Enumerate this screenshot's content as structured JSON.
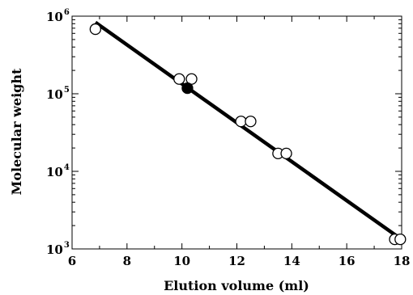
{
  "chart_data": {
    "type": "scatter",
    "title": "",
    "xlabel": "Elution volume (ml)",
    "ylabel": "Molecular weight",
    "xlim": [
      6,
      18
    ],
    "ylim": [
      1000,
      1000000
    ],
    "y_scale": "log",
    "x_ticks": [
      "6",
      "8",
      "10",
      "12",
      "14",
      "16",
      "18"
    ],
    "y_tick_labels": [
      {
        "base": "10",
        "exp": "3",
        "value": 1000
      },
      {
        "base": "10",
        "exp": "4",
        "value": 10000
      },
      {
        "base": "10",
        "exp": "5",
        "value": 100000
      },
      {
        "base": "10",
        "exp": "6",
        "value": 1000000
      }
    ],
    "grid": false,
    "series": [
      {
        "marker": "open-circle",
        "points": [
          {
            "x": 6.85,
            "y": 680000
          },
          {
            "x": 9.9,
            "y": 155000
          },
          {
            "x": 10.35,
            "y": 155000
          },
          {
            "x": 12.15,
            "y": 44000
          },
          {
            "x": 12.5,
            "y": 44000
          },
          {
            "x": 13.5,
            "y": 17000
          },
          {
            "x": 13.8,
            "y": 17000
          },
          {
            "x": 17.75,
            "y": 1330
          },
          {
            "x": 17.95,
            "y": 1330
          }
        ]
      },
      {
        "marker": "filled-circle",
        "points": [
          {
            "x": 10.2,
            "y": 118000
          }
        ]
      }
    ],
    "fit_line": {
      "x": [
        6.85,
        17.9
      ],
      "y": [
        830000,
        1400
      ]
    },
    "colors": {
      "ink": "#000000",
      "marker_fill_open": "#ffffff",
      "marker_fill_solid": "#000000"
    }
  }
}
